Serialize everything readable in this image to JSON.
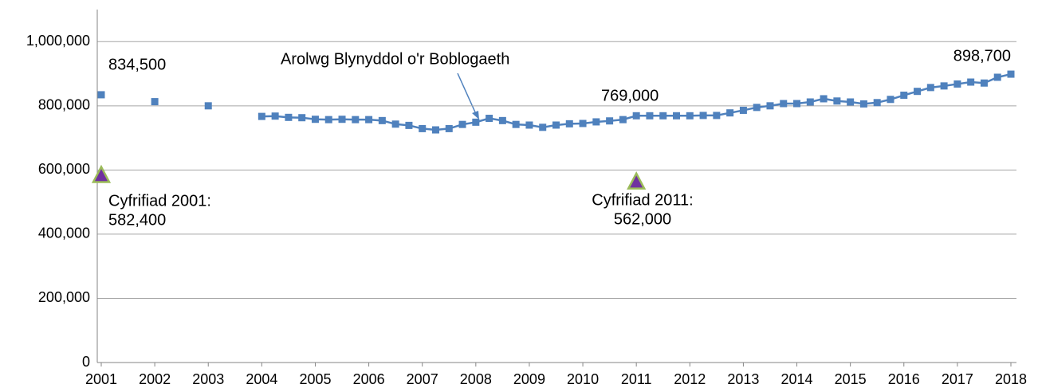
{
  "chart_data": {
    "type": "scatter-line",
    "xlim": [
      2001,
      2018
    ],
    "xticks": [
      2001,
      2002,
      2003,
      2004,
      2005,
      2006,
      2007,
      2008,
      2009,
      2010,
      2011,
      2012,
      2013,
      2014,
      2015,
      2016,
      2017,
      2018
    ],
    "ylim": [
      0,
      1100000
    ],
    "yticks": [
      0,
      {
        "value": 200000,
        "label": "200,000"
      },
      {
        "value": 400000,
        "label": "400,000"
      },
      {
        "value": 600000,
        "label": "600,000"
      },
      {
        "value": 800000,
        "label": "800,000"
      },
      {
        "value": 1000000,
        "label": "1,000,000"
      }
    ],
    "grid": true,
    "series": [
      {
        "color": "#4f81bd",
        "marker": "square",
        "line": false,
        "x": [
          2001,
          2002,
          2003
        ],
        "values": [
          834500,
          813000,
          800000
        ]
      },
      {
        "color": "#4f81bd",
        "marker": "square",
        "line": true,
        "x": [
          2004,
          2004.25,
          2004.5,
          2004.75,
          2005,
          2005.25,
          2005.5,
          2005.75,
          2006,
          2006.25,
          2006.5,
          2006.75,
          2007,
          2007.25,
          2007.5,
          2007.75,
          2008,
          2008.25,
          2008.5,
          2008.75,
          2009,
          2009.25,
          2009.5,
          2009.75,
          2010,
          2010.25,
          2010.5,
          2010.75,
          2011,
          2011.25,
          2011.5,
          2011.75,
          2012,
          2012.25,
          2012.5,
          2012.75,
          2013,
          2013.25,
          2013.5,
          2013.75,
          2014,
          2014.25,
          2014.5,
          2014.75,
          2015,
          2015.25,
          2015.5,
          2015.75,
          2016,
          2016.25,
          2016.5,
          2016.75,
          2017,
          2017.25,
          2017.5,
          2017.75,
          2018
        ],
        "values": [
          767000,
          768000,
          764000,
          763000,
          758000,
          757000,
          758000,
          757000,
          757000,
          754000,
          743000,
          739000,
          729000,
          725000,
          729000,
          742000,
          749000,
          761000,
          754000,
          742000,
          740000,
          733000,
          740000,
          744000,
          745000,
          750000,
          753000,
          757000,
          769000,
          769000,
          769000,
          769000,
          769000,
          770000,
          770000,
          778000,
          786000,
          795000,
          800000,
          807000,
          807000,
          812000,
          822000,
          815000,
          812000,
          806000,
          810000,
          820000,
          833000,
          845000,
          857000,
          862000,
          868000,
          874000,
          871000,
          889000,
          898700
        ]
      },
      {
        "color": "#7030a0",
        "stroke": "#9bbb59",
        "marker": "triangle",
        "line": false,
        "x": [
          2001,
          2011
        ],
        "values": [
          582400,
          562000
        ]
      }
    ],
    "annotations": [
      {
        "lines": [
          "834,500"
        ]
      },
      {
        "lines": [
          "898,700"
        ]
      },
      {
        "lines": [
          "769,000"
        ]
      },
      {
        "lines": [
          "Arolwg Blynyddol o'r Boblogaeth"
        ]
      },
      {
        "lines": [
          "Cyfrifiad 2001:",
          "582,400"
        ]
      },
      {
        "lines": [
          "Cyfrifiad 2011:",
          "562,000"
        ]
      }
    ]
  }
}
